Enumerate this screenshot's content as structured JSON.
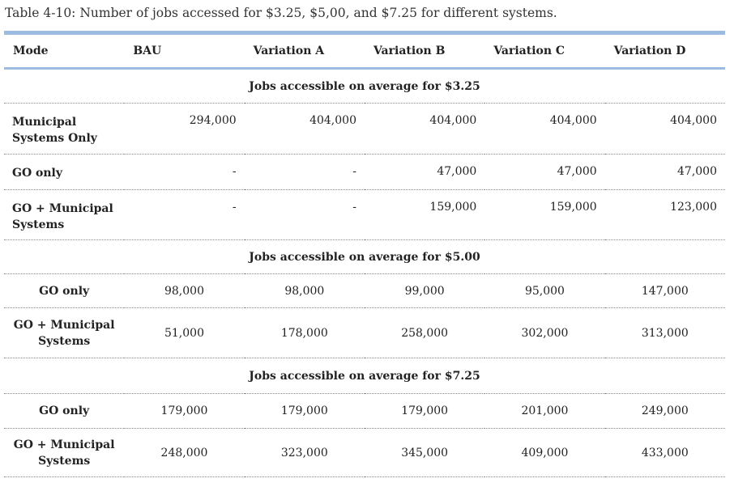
{
  "caption": "Table 4-10: Number of jobs accessed for $3.25, $5,00, and $7.25 for different systems.",
  "headers": [
    "Mode",
    "BAU",
    "Variation A",
    "Variation B",
    "Variation C",
    "Variation D"
  ],
  "sections": [
    {
      "title": "Jobs accessible on average for $3.25",
      "rows": [
        {
          "mode": "Municipal Systems Only",
          "values": [
            "294,000",
            "404,000",
            "404,000",
            "404,000",
            "404,000"
          ]
        },
        {
          "mode": "GO only",
          "values": [
            "-",
            "-",
            "47,000",
            "47,000",
            "47,000"
          ]
        },
        {
          "mode": "GO + Municipal Systems",
          "values": [
            "-",
            "-",
            "159,000",
            "159,000",
            "123,000"
          ]
        }
      ]
    },
    {
      "title": "Jobs accessible on average for $5.00",
      "rows": [
        {
          "mode": "GO only",
          "values": [
            "98,000",
            "98,000",
            "99,000",
            "95,000",
            "147,000"
          ]
        },
        {
          "mode": "GO + Municipal Systems",
          "values": [
            "51,000",
            "178,000",
            "258,000",
            "302,000",
            "313,000"
          ]
        }
      ]
    },
    {
      "title": "Jobs accessible on average for $7.25",
      "rows": [
        {
          "mode": "GO only",
          "values": [
            "179,000",
            "179,000",
            "179,000",
            "201,000",
            "249,000"
          ]
        },
        {
          "mode": "GO + Municipal Systems",
          "values": [
            "248,000",
            "323,000",
            "345,000",
            "409,000",
            "433,000"
          ]
        }
      ]
    }
  ]
}
